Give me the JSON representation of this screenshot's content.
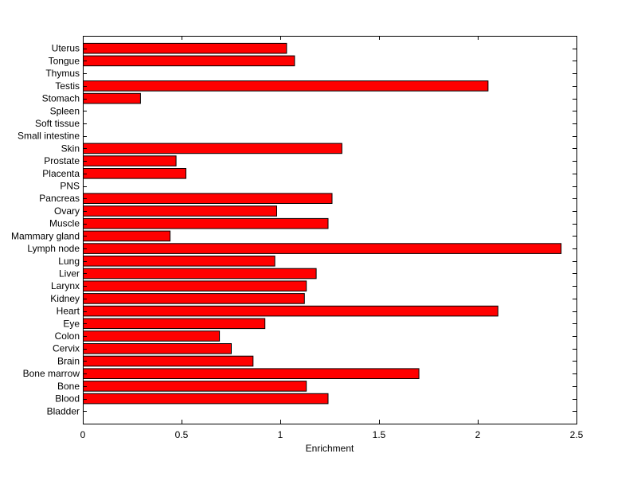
{
  "chart_data": {
    "type": "bar",
    "orientation": "horizontal",
    "categories": [
      "Bladder",
      "Blood",
      "Bone",
      "Bone marrow",
      "Brain",
      "Cervix",
      "Colon",
      "Eye",
      "Heart",
      "Kidney",
      "Larynx",
      "Liver",
      "Lung",
      "Lymph node",
      "Mammary gland",
      "Muscle",
      "Ovary",
      "Pancreas",
      "PNS",
      "Placenta",
      "Prostate",
      "Skin",
      "Small intestine",
      "Soft tissue",
      "Spleen",
      "Stomach",
      "Testis",
      "Thymus",
      "Tongue",
      "Uterus"
    ],
    "values": [
      0,
      1.24,
      1.13,
      1.7,
      0.86,
      0.75,
      0.69,
      0.92,
      2.1,
      1.12,
      1.13,
      1.18,
      0.97,
      2.42,
      0.44,
      1.24,
      0.98,
      1.26,
      0,
      0.52,
      0.47,
      1.31,
      0,
      0,
      0,
      0.29,
      2.05,
      0,
      1.07,
      1.03
    ],
    "title": "",
    "xlabel": "Enrichment",
    "ylabel": "",
    "xlim": [
      0,
      2.5
    ],
    "xticks": [
      "0",
      "0.5",
      "1",
      "1.5",
      "2",
      "2.5"
    ],
    "xtick_values": [
      0,
      0.5,
      1,
      1.5,
      2,
      2.5
    ],
    "bar_color": "#ff0000",
    "bar_edge_color": "#000000",
    "grid": false,
    "legend": "none"
  }
}
